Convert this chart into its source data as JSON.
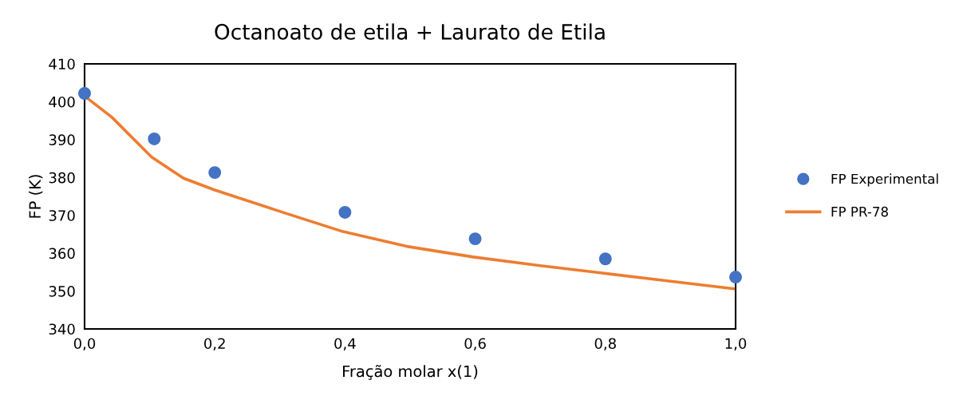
{
  "chart_data": {
    "type": "scatter",
    "title": "Octanoato de etila + Laurato de Etila",
    "xlabel": "Fração molar x(1)",
    "ylabel": "FP (K)",
    "series": [
      {
        "name": "FP Experimental",
        "color": "#4472c4",
        "marker": "circle",
        "x": [
          0.0,
          0.107,
          0.2,
          0.4,
          0.6,
          0.8,
          1.0
        ],
        "values": [
          402.2,
          390.2,
          381.3,
          370.8,
          363.8,
          358.5,
          353.7
        ]
      },
      {
        "name": "FP PR-78",
        "type": "line",
        "color": "#ed7d31",
        "marker": "none",
        "line_style": "solid",
        "x": [
          0.0,
          0.042,
          0.103,
          0.152,
          0.2,
          0.308,
          0.397,
          0.495,
          0.597,
          0.7,
          0.793,
          0.9,
          0.998
        ],
        "values": [
          401.5,
          395.9,
          385.4,
          379.8,
          376.7,
          370.6,
          365.7,
          361.8,
          359.0,
          356.7,
          354.8,
          352.6,
          350.6
        ]
      }
    ],
    "xlim": [
      0,
      1
    ],
    "ylim": [
      340,
      410
    ],
    "xticks": [
      {
        "value": 0,
        "label": "0,0"
      },
      {
        "value": 0.2,
        "label": "0,2"
      },
      {
        "value": 0.4,
        "label": "0,4"
      },
      {
        "value": 0.6,
        "label": "0,6"
      },
      {
        "value": 0.8,
        "label": "0,8"
      },
      {
        "value": 1,
        "label": "1,0"
      }
    ],
    "yticks": [
      340,
      350,
      360,
      370,
      380,
      390,
      400,
      410
    ],
    "grid": false,
    "legend": "right"
  }
}
